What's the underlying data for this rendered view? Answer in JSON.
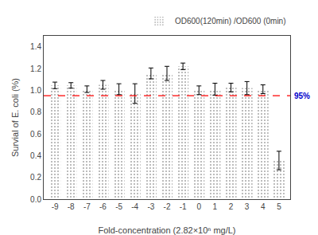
{
  "chart_data": {
    "type": "bar",
    "x": [
      -9,
      -8,
      -7,
      -6,
      -5,
      -4,
      -3,
      -2,
      -1,
      0,
      1,
      2,
      3,
      4,
      5
    ],
    "series": [
      {
        "name": "OD600(120min) /OD600 (0min)",
        "color": "#EE82EE",
        "values": [
          1.045,
          1.045,
          1.01,
          1.05,
          1.01,
          0.97,
          1.155,
          1.155,
          1.22,
          1.0,
          1.01,
          1.025,
          1.02,
          1.01,
          0.355
        ],
        "errors": [
          0.03,
          0.025,
          0.03,
          0.04,
          0.05,
          0.09,
          0.05,
          0.065,
          0.03,
          0.04,
          0.055,
          0.04,
          0.06,
          0.04,
          0.085
        ]
      }
    ],
    "xlabel": "Fold-concentration (2.82×10ⁿ mg/L)",
    "ylabel": "Survial of E. coli (%)",
    "xlim": [
      -9.7,
      5.7
    ],
    "xticks": [
      -9,
      -8,
      -7,
      -6,
      -5,
      -4,
      -3,
      -2,
      -1,
      0,
      1,
      2,
      3,
      4,
      5
    ],
    "ylim": [
      0.0,
      1.5
    ],
    "yticks": [
      0.0,
      0.2,
      0.4,
      0.6,
      0.8,
      1.0,
      1.2,
      1.4
    ],
    "hlines": [
      {
        "y": 0.95,
        "color": "#FF0000",
        "line_style": "dashed",
        "label": "95%",
        "label_color": "#0000CC"
      }
    ],
    "legend": "upper right",
    "grid": false
  }
}
